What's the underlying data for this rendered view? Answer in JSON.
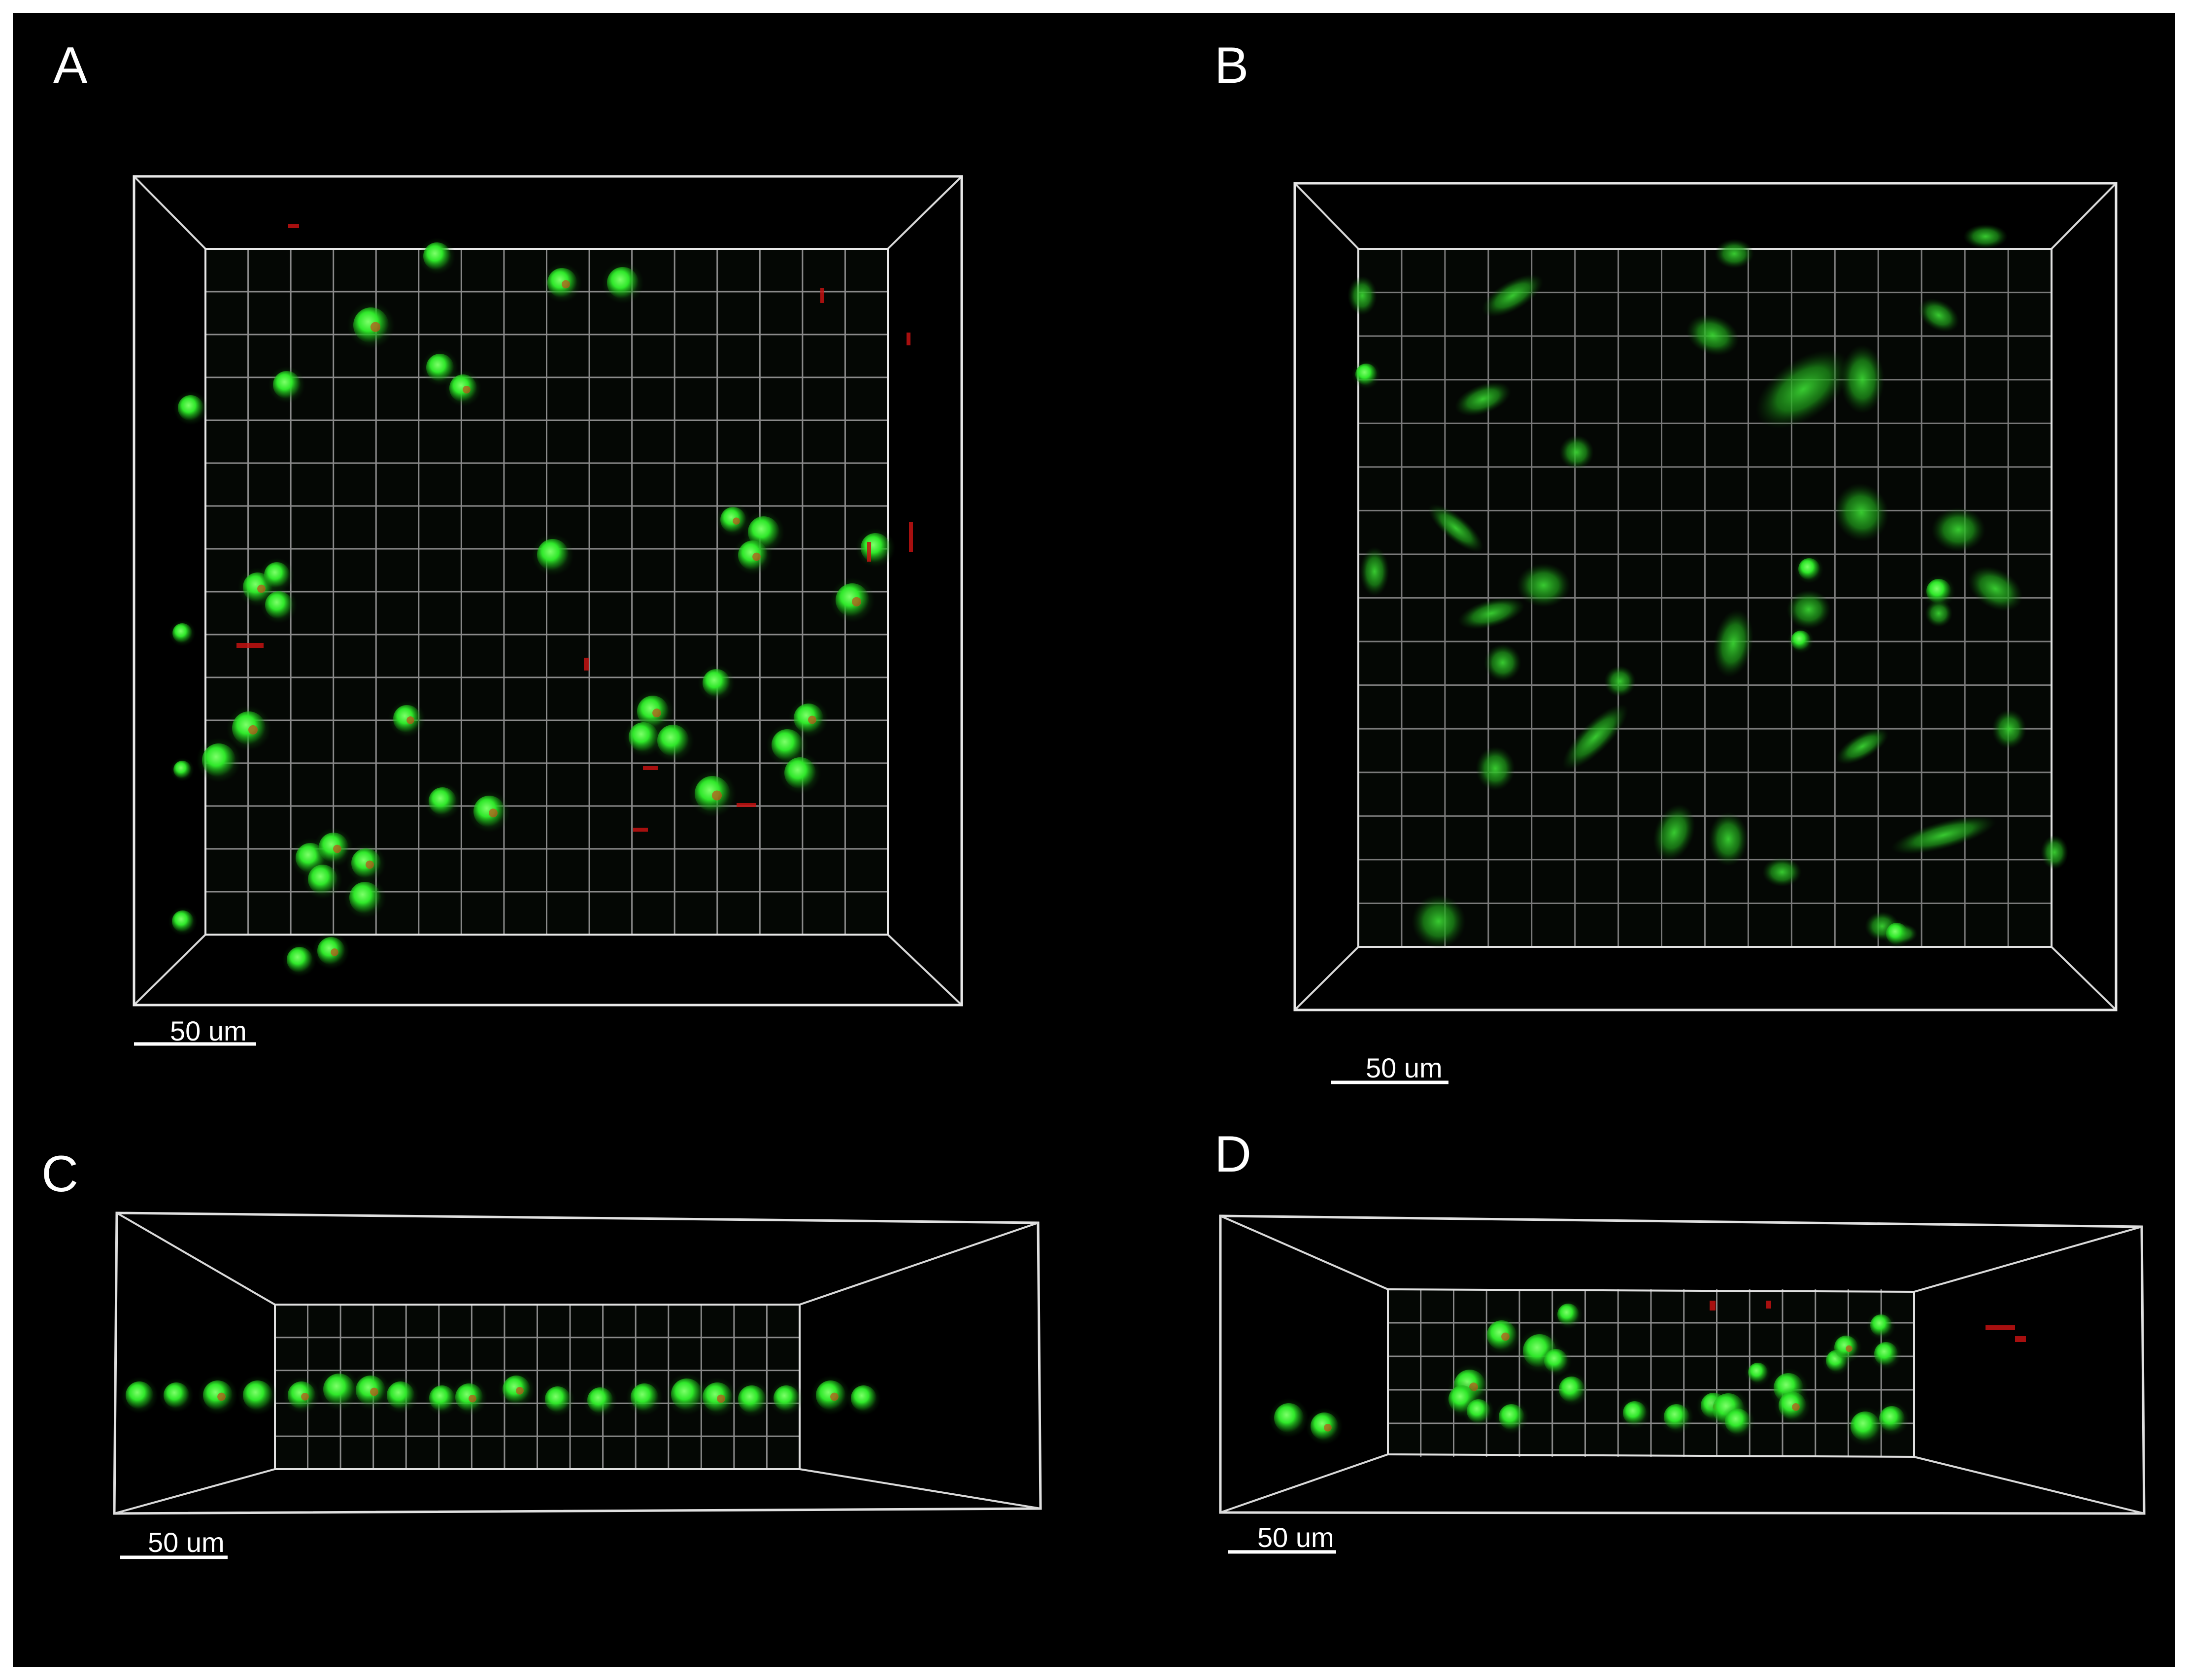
{
  "figure": {
    "background": "#000000",
    "frame_color": "#ffffff",
    "grid_color": "#8a8a8a",
    "cell_color": "#22e01e",
    "particle_color": "#d01414"
  },
  "panels": [
    {
      "letter": "A",
      "scale_label": "50 um",
      "view": "top, spherical cells"
    },
    {
      "letter": "B",
      "scale_label": "50 um",
      "view": "top, spread cells"
    },
    {
      "letter": "C",
      "scale_label": "50 um",
      "view": "side, single layer"
    },
    {
      "letter": "D",
      "scale_label": "50 um",
      "view": "side, scattered cells"
    }
  ]
}
